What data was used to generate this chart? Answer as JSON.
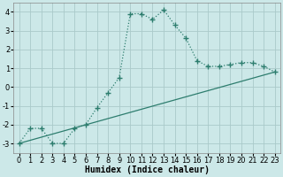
{
  "xlabel": "Humidex (Indice chaleur)",
  "background_color": "#cce8e8",
  "line_color": "#2d7d6e",
  "grid_color": "#aacaca",
  "xlim": [
    -0.5,
    23.5
  ],
  "ylim": [
    -3.5,
    4.5
  ],
  "yticks": [
    -3,
    -2,
    -1,
    0,
    1,
    2,
    3,
    4
  ],
  "xticks": [
    0,
    1,
    2,
    3,
    4,
    5,
    6,
    7,
    8,
    9,
    10,
    11,
    12,
    13,
    14,
    15,
    16,
    17,
    18,
    19,
    20,
    21,
    22,
    23
  ],
  "line1_x": [
    0,
    1,
    2,
    3,
    4,
    5,
    6,
    7,
    8,
    9,
    10,
    11,
    12,
    13,
    14,
    15,
    16,
    17,
    18,
    19,
    20,
    21,
    22,
    23
  ],
  "line1_y": [
    -3.0,
    -2.2,
    -2.2,
    -3.0,
    -3.0,
    -2.2,
    -2.0,
    -1.1,
    -0.3,
    0.5,
    3.9,
    3.9,
    3.6,
    4.1,
    3.3,
    2.6,
    1.4,
    1.1,
    1.1,
    1.2,
    1.3,
    1.3,
    1.1,
    0.8
  ],
  "line2_x": [
    0,
    23
  ],
  "line2_y": [
    -3.0,
    0.8
  ],
  "xlabel_fontsize": 7,
  "tick_fontsize": 6
}
